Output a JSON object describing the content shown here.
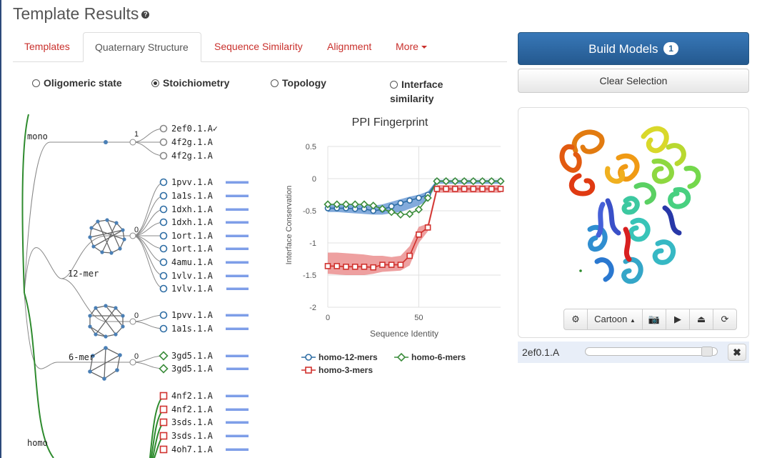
{
  "header": {
    "title": "Template Results",
    "help_icon": "question-circle-icon"
  },
  "tabs": [
    {
      "label": "Templates",
      "active": false
    },
    {
      "label": "Quaternary Structure",
      "active": true
    },
    {
      "label": "Sequence Similarity",
      "active": false
    },
    {
      "label": "Alignment",
      "active": false
    },
    {
      "label": "More",
      "active": false,
      "dropdown": true
    }
  ],
  "radios": [
    {
      "label": "Oligomeric state",
      "checked": false
    },
    {
      "label": "Stoichiometry",
      "checked": true
    },
    {
      "label": "Topology",
      "checked": false
    },
    {
      "label": "Interface",
      "label2": "similarity",
      "checked": false
    }
  ],
  "tree": {
    "group_labels": {
      "mono": "mono",
      "mer12": "12-mer",
      "mer6": "6-mer",
      "homo": "homo"
    },
    "counts": {
      "mono": "1",
      "mer12_a": "0",
      "mer12_b": "0",
      "mer6": "0"
    },
    "leaves": [
      {
        "label": "2ef0.1.A",
        "selected": true,
        "marker": "circle",
        "color": "#888888",
        "bar": null
      },
      {
        "label": "4f2g.1.A",
        "marker": "circle",
        "color": "#888888",
        "bar": null
      },
      {
        "label": "4f2g.1.A",
        "marker": "circle",
        "color": "#888888",
        "bar": null
      },
      {
        "label": "1pvv.1.A",
        "marker": "circle",
        "color": "#2e6da4",
        "bar": 1.0
      },
      {
        "label": "1a1s.1.A",
        "marker": "circle",
        "color": "#2e6da4",
        "bar": 1.0
      },
      {
        "label": "1dxh.1.A",
        "marker": "circle",
        "color": "#2e6da4",
        "bar": 1.0
      },
      {
        "label": "1dxh.1.A",
        "marker": "circle",
        "color": "#2e6da4",
        "bar": 1.0
      },
      {
        "label": "1ort.1.A",
        "marker": "circle",
        "color": "#2e6da4",
        "bar": 1.0
      },
      {
        "label": "1ort.1.A",
        "marker": "circle",
        "color": "#2e6da4",
        "bar": 1.0
      },
      {
        "label": "4amu.1.A",
        "marker": "circle",
        "color": "#2e6da4",
        "bar": 1.0
      },
      {
        "label": "1vlv.1.A",
        "marker": "circle",
        "color": "#2e6da4",
        "bar": 1.0
      },
      {
        "label": "1vlv.1.A",
        "marker": "circle",
        "color": "#2e6da4",
        "bar": 0.97
      },
      {
        "label": "1pvv.1.A",
        "marker": "circle",
        "color": "#2e6da4",
        "bar": 1.0
      },
      {
        "label": "1a1s.1.A",
        "marker": "circle",
        "color": "#2e6da4",
        "bar": 1.0
      },
      {
        "label": "3gd5.1.A",
        "marker": "diamond",
        "color": "#3c8d3c",
        "bar": 1.0
      },
      {
        "label": "3gd5.1.A",
        "marker": "diamond",
        "color": "#3c8d3c",
        "bar": 0.97
      },
      {
        "label": "4nf2.1.A",
        "marker": "square",
        "color": "#d0312d",
        "bar": 1.0
      },
      {
        "label": "4nf2.1.A",
        "marker": "square",
        "color": "#d0312d",
        "bar": 1.0
      },
      {
        "label": "3sds.1.A",
        "marker": "square",
        "color": "#d0312d",
        "bar": 1.0
      },
      {
        "label": "3sds.1.A",
        "marker": "square",
        "color": "#d0312d",
        "bar": 1.0
      },
      {
        "label": "4oh7.1.A",
        "marker": "square",
        "color": "#d0312d",
        "bar": 1.0
      }
    ],
    "bar_color": "#7e9ee8"
  },
  "chart_data": {
    "type": "line",
    "title": "PPI Fingerprint",
    "xlabel": "Sequence Identity",
    "ylabel": "Interface Conservation",
    "xlim": [
      0,
      95
    ],
    "ylim": [
      -2,
      0.5
    ],
    "xticks": [
      0,
      50
    ],
    "yticks": [
      0.5,
      0,
      -0.5,
      -1,
      -1.5,
      -2
    ],
    "grid": true,
    "legend_position": "bottom",
    "series": [
      {
        "name": "homo-12-mers",
        "color": "#2e6da4",
        "marker": "circle",
        "x": [
          0,
          5,
          10,
          15,
          20,
          25,
          30,
          35,
          40,
          45,
          50,
          55,
          60,
          65,
          70,
          75,
          80,
          85,
          90,
          95
        ],
        "y": [
          -0.46,
          -0.46,
          -0.46,
          -0.47,
          -0.47,
          -0.5,
          -0.48,
          -0.43,
          -0.38,
          -0.34,
          -0.3,
          -0.25,
          -0.04,
          -0.04,
          -0.04,
          -0.04,
          -0.04,
          -0.04,
          -0.04,
          -0.04
        ],
        "band": [
          [
            -0.4,
            -0.52
          ],
          [
            -0.4,
            -0.52
          ],
          [
            -0.4,
            -0.53
          ],
          [
            -0.41,
            -0.54
          ],
          [
            -0.41,
            -0.55
          ],
          [
            -0.42,
            -0.56
          ],
          [
            -0.4,
            -0.56
          ],
          [
            -0.36,
            -0.54
          ],
          [
            -0.32,
            -0.52
          ],
          [
            -0.28,
            -0.47
          ],
          [
            -0.25,
            -0.42
          ],
          [
            -0.2,
            -0.34
          ],
          [
            -0.02,
            -0.08
          ],
          [
            -0.02,
            -0.08
          ],
          [
            -0.02,
            -0.08
          ],
          [
            -0.02,
            -0.08
          ],
          [
            -0.02,
            -0.08
          ],
          [
            -0.02,
            -0.08
          ],
          [
            -0.02,
            -0.08
          ],
          [
            -0.02,
            -0.08
          ]
        ]
      },
      {
        "name": "homo-6-mers",
        "color": "#3c8d3c",
        "marker": "diamond",
        "x": [
          0,
          5,
          10,
          15,
          20,
          25,
          30,
          35,
          40,
          45,
          50,
          55,
          60,
          65,
          70,
          75,
          80,
          85,
          90,
          95
        ],
        "y": [
          -0.4,
          -0.4,
          -0.4,
          -0.4,
          -0.4,
          -0.42,
          -0.47,
          -0.52,
          -0.56,
          -0.55,
          -0.48,
          -0.3,
          -0.04,
          -0.04,
          -0.04,
          -0.04,
          -0.04,
          -0.04,
          -0.04,
          -0.04
        ]
      },
      {
        "name": "homo-3-mers",
        "color": "#d0312d",
        "marker": "square",
        "x": [
          0,
          5,
          10,
          15,
          20,
          25,
          30,
          35,
          40,
          45,
          50,
          55,
          60,
          65,
          70,
          75,
          80,
          85,
          90,
          95
        ],
        "y": [
          -1.36,
          -1.36,
          -1.37,
          -1.37,
          -1.37,
          -1.38,
          -1.34,
          -1.34,
          -1.34,
          -1.2,
          -0.87,
          -0.76,
          -0.16,
          -0.16,
          -0.16,
          -0.16,
          -0.16,
          -0.16,
          -0.16,
          -0.16
        ],
        "band": [
          [
            -1.15,
            -1.48
          ],
          [
            -1.15,
            -1.49
          ],
          [
            -1.16,
            -1.5
          ],
          [
            -1.17,
            -1.5
          ],
          [
            -1.18,
            -1.5
          ],
          [
            -1.2,
            -1.48
          ],
          [
            -1.2,
            -1.45
          ],
          [
            -1.22,
            -1.44
          ],
          [
            -1.2,
            -1.43
          ],
          [
            -1.05,
            -1.35
          ],
          [
            -0.75,
            -1.0
          ],
          [
            -0.7,
            -0.82
          ],
          [
            -0.1,
            -0.22
          ],
          [
            -0.1,
            -0.22
          ],
          [
            -0.1,
            -0.22
          ],
          [
            -0.1,
            -0.22
          ],
          [
            -0.1,
            -0.22
          ],
          [
            -0.1,
            -0.22
          ],
          [
            -0.1,
            -0.22
          ],
          [
            -0.1,
            -0.22
          ]
        ]
      }
    ]
  },
  "actions": {
    "build_label": "Build Models",
    "build_count": "1",
    "clear_label": "Clear Selection"
  },
  "viewer": {
    "toolbar": {
      "settings_icon": "gear-icon",
      "style_label": "Cartoon",
      "camera_icon": "camera-icon",
      "play_icon": "play-icon",
      "eject_icon": "eject-icon",
      "refresh_icon": "refresh-icon"
    },
    "selection": {
      "label": "2ef0.1.A",
      "opacity": 0.95,
      "remove_label": "✖"
    }
  }
}
